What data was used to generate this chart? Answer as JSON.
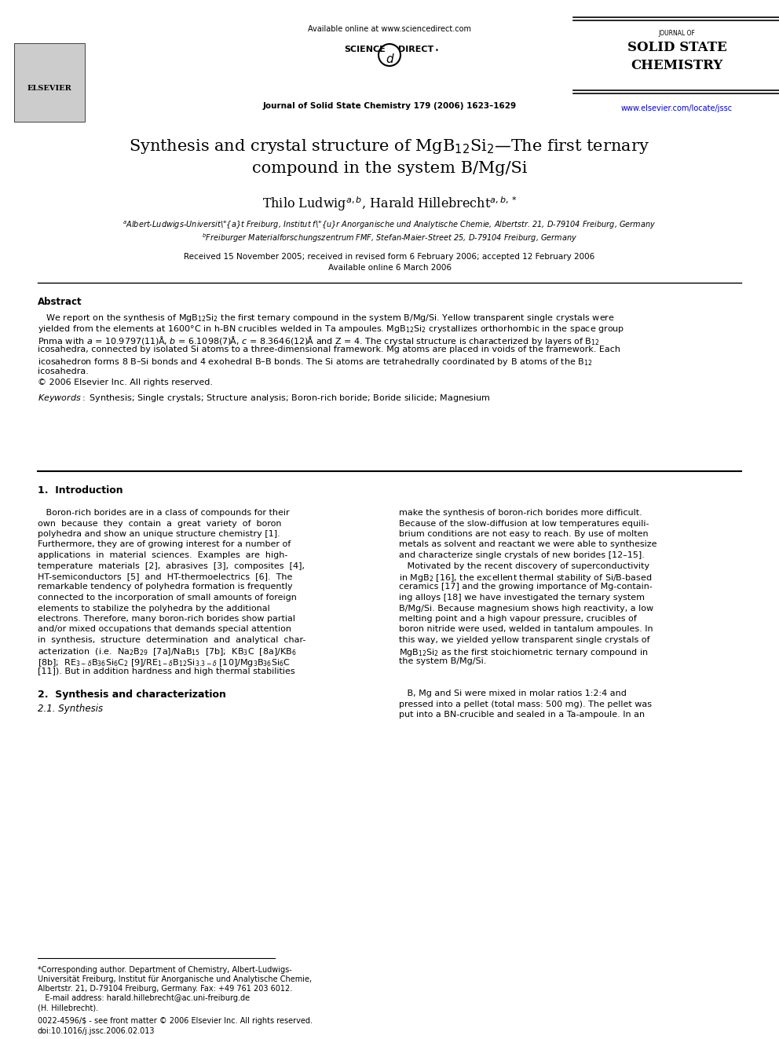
{
  "bg_color": "#ffffff",
  "header": {
    "available_online": "Available online at www.sciencedirect.com",
    "journal_info": "Journal of Solid State Chemistry 179 (2006) 1623–1629",
    "journal_name_line1": "JOURNAL OF",
    "journal_name_line2": "SOLID STATE",
    "journal_name_line3": "CHEMISTRY",
    "website": "www.elsevier.com/locate/jssc"
  },
  "title": "Synthesis and crystal structure of MgB$_{12}$Si$_2$—The first ternary\ncompound in the system B/Mg/Si",
  "authors": "Thilo Ludwig$^{a,b}$, Harald Hillebrecht$^{a,b,*}$",
  "affil_a": "$^a$Albert-Ludwigs-Universität Freiburg, Institut für Anorganische und Analytische Chemie, Albertstr. 21, D-79104 Freiburg, Germany",
  "affil_b": "$^b$Freiburger Materialforschungszentrum FMF, Stefan-Maier-Street 25, D-79104 Freiburg, Germany",
  "received": "Received 15 November 2005; received in revised form 6 February 2006; accepted 12 February 2006",
  "available": "Available online 6 March 2006",
  "abstract_title": "Abstract",
  "abstract_text": "   We report on the synthesis of MgB$_{12}$Si$_2$ the first ternary compound in the system B/Mg/Si. Yellow transparent single crystals were\nyielded from the elements at 1600°C in h-BN crucibles welded in Ta ampoules. MgB$_{12}$Si$_2$ crystallizes orthorhombic in the space group\n\\textit{Pnma} with $a$ = 10.9797(11)Å, $b$ = 6.1098(7)Å, $c$ = 8.3646(12)Å and Z = 4. The crystal structure is characterized by layers of B$_{12}$\nicosahedra, connected by isolated Si atoms to a three-dimensional framework. Mg atoms are placed in voids of the framework. Each\nicosahedron forms 8 B–Si bonds and 4 exohedral B–B bonds. The Si atoms are tetrahedrally coordinated by B atoms of the B$_{12}$\nicosahedra.\n© 2006 Elsevier Inc. All rights reserved.",
  "keywords": "\\textit{Keywords:} Synthesis; Single crystals; Structure analysis; Boron-rich boride; Boride silicide; Magnesium",
  "section1_title": "1.  Introduction",
  "section1_left": "   Boron-rich borides are in a class of compounds for their\nown  because  they  contain  a  great  variety  of  boron\npolyhedra and show an unique structure chemistry [1].\nFurthermore, they are of growing interest for a number of\napplications  in  material  sciences.  Examples  are  high-\ntemperature  materials  [2],  abrasives  [3],  composites  [4],\nHT-semiconductors  [5]  and  HT-thermoelectrics  [6].  The\nremarkable tendency of polyhedra formation is frequently\nconnected to the incorporation of small amounts of foreign\nelements to stabilize the polyhedra by the additional\nelectrons. Therefore, many boron-rich borides show partial\nand/or mixed occupations that demands special attention\nin  synthesis,  structure  determination  and  analytical  char-\nacterization  (i.e.  Na$_2$B$_{29}$  [7a]/NaB$_{15}$  [7b];  KB$_3$C  [8a]/KB$_6$\n[8b];  RE$_{3-\\delta}$B$_{36}$Si$_6$C$_2$  [9]/RE$_{1-\\delta}$B$_{12}$Si$_{3.3-\\delta}$  [10]/Mg$_3$B$_{36}$Si$_6$C\n[11]). But in addition hardness and high thermal stabilities",
  "section1_right": "make the synthesis of boron-rich borides more difficult.\nBecause of the slow-diffusion at low temperatures equili-\nbrium conditions are not easy to reach. By use of molten\nmetals as solvent and reactant we were able to synthesize\nand characterize single crystals of new borides [12–15].\n   Motivated by the recent discovery of superconductivity\nin MgB$_2$ [16], the excellent thermal stability of Si/B-based\nceramics [17] and the growing importance of Mg-contain-\ning alloys [18] we have investigated the ternary system\nB/Mg/Si. Because magnesium shows high reactivity, a low\nmelting point and a high vapour pressure, crucibles of\nboron nitride were used, welded in tantalum ampoules. In\nthis way, we yielded yellow transparent single crystals of\nMgB$_{12}$Si$_2$ as the first stoichiometric ternary compound in\nthe system B/Mg/Si.",
  "section2_title": "2.  Synthesis and characterization",
  "section2_sub": "\\textit{2.1. Synthesis}",
  "section2_right_start": "   B, Mg and Si were mixed in molar ratios 1:2:4 and\npressed into a pellet (total mass: 500 mg). The pellet was\nput into a BN-crucible and sealed in a Ta-ampoule. In an",
  "footnote_star": "*Corresponding author. Department of Chemistry, Albert-Ludwigs-\nUniversität Freiburg, Institut für Anorganische und Analytische Chemie,\nAlbertstr. 21, D-79104 Freiburg, Germany. Fax: +49 761 203 6012.",
  "footnote_email": "   E-mail address: harald.hillebrecht@ac.uni-freiburg.de",
  "footnote_name": "(H. Hillebrecht).",
  "footer_line1": "0022-4596/$ - see front matter © 2006 Elsevier Inc. All rights reserved.",
  "footer_line2": "doi:10.1016/j.jssc.2006.02.013"
}
